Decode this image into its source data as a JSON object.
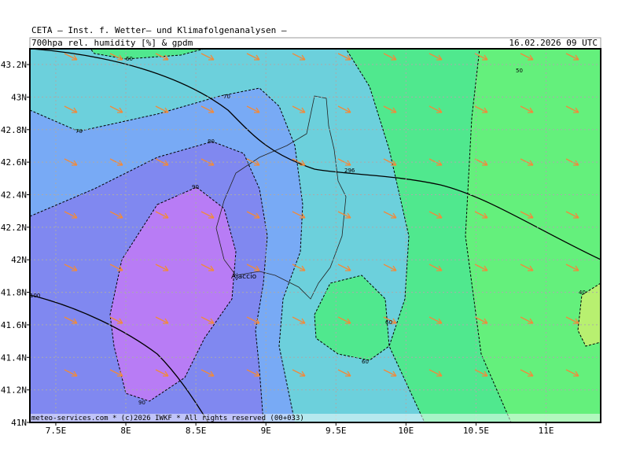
{
  "header": {
    "institute": "CETA – Inst. f. Wetter– und Klimafolgenanalysen –",
    "field": "700hpa rel. humidity [%] & gpdm",
    "valid_time": "16.02.2026 09 UTC"
  },
  "map": {
    "lon_range": [
      7.315,
      11.39
    ],
    "lat_range": [
      41,
      43.297
    ],
    "lon_ticks": [
      {
        "value": 7.5,
        "label": "7.5E"
      },
      {
        "value": 8,
        "label": "8E"
      },
      {
        "value": 8.5,
        "label": "8.5E"
      },
      {
        "value": 9,
        "label": "9E"
      },
      {
        "value": 9.5,
        "label": "9.5E"
      },
      {
        "value": 10,
        "label": "10E"
      },
      {
        "value": 10.5,
        "label": "10.5E"
      },
      {
        "value": 11,
        "label": "11E"
      }
    ],
    "lat_ticks": [
      {
        "value": 41,
        "label": "41N"
      },
      {
        "value": 41.2,
        "label": "41.2N"
      },
      {
        "value": 41.4,
        "label": "41.4N"
      },
      {
        "value": 41.6,
        "label": "41.6N"
      },
      {
        "value": 41.8,
        "label": "41.8N"
      },
      {
        "value": 42,
        "label": "42N"
      },
      {
        "value": 42.2,
        "label": "42.2N"
      },
      {
        "value": 42.4,
        "label": "42.4N"
      },
      {
        "value": 42.6,
        "label": "42.6N"
      },
      {
        "value": 42.8,
        "label": "42.8N"
      },
      {
        "value": 43,
        "label": "43N"
      },
      {
        "value": 43.2,
        "label": "43.2N"
      }
    ],
    "place": "Ajaccio",
    "contour_labels": [
      "60",
      "70",
      "70",
      "80",
      "90",
      "100",
      "90",
      "60",
      "60",
      "296",
      "50",
      "40"
    ],
    "footer": "meteo-services.com * (c)2026 IWKF * All rights reserved (00+033)"
  }
}
